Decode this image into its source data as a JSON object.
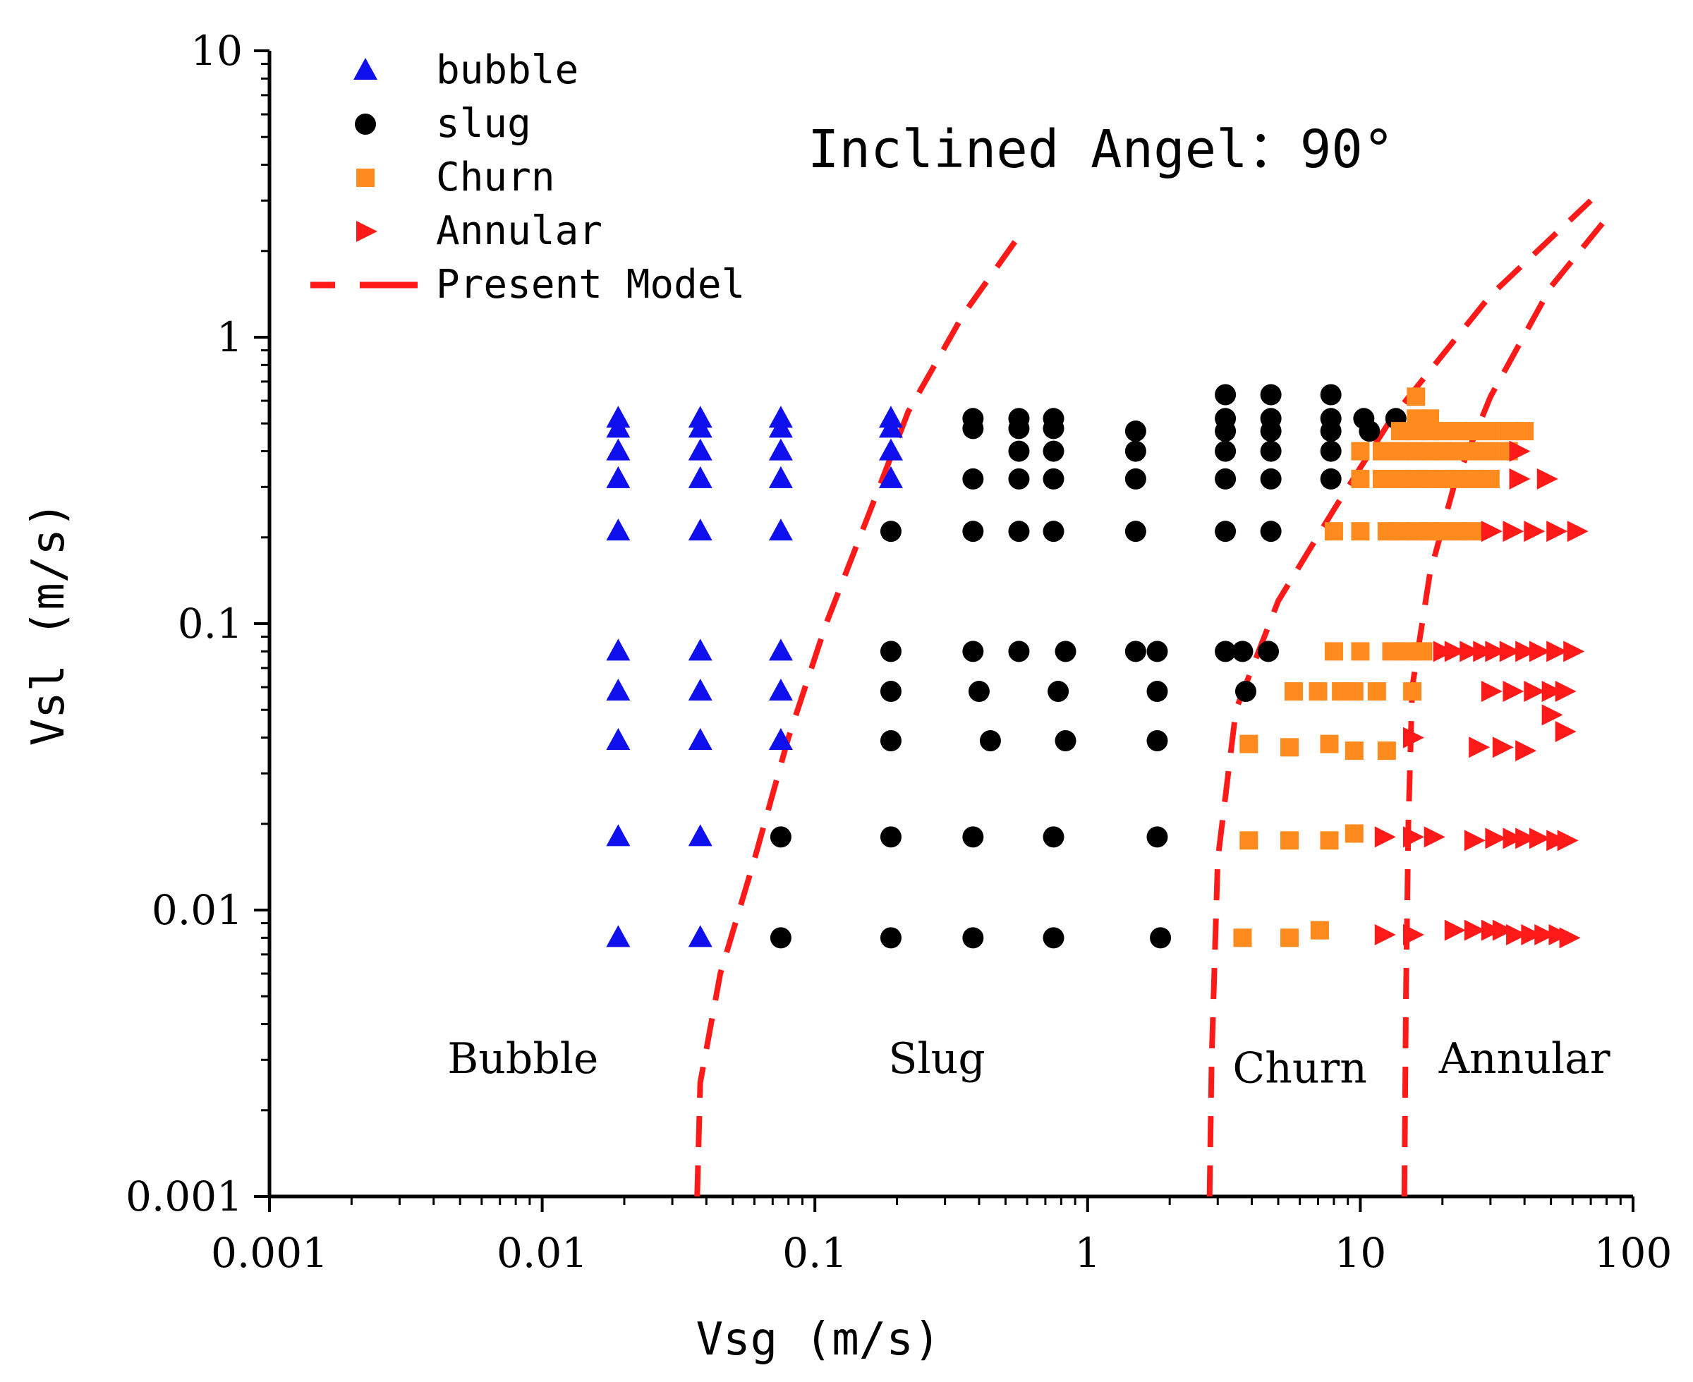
{
  "chart_data": {
    "type": "scatter",
    "title": "Inclined Angel：90°",
    "xlabel": "Vsg (m/s)",
    "ylabel": "Vsl (m/s)",
    "xscale": "log",
    "yscale": "log",
    "xlim": [
      0.001,
      100
    ],
    "ylim": [
      0.001,
      10
    ],
    "xticks": [
      {
        "value": 0.001,
        "label": "0.001"
      },
      {
        "value": 0.01,
        "label": "0.01"
      },
      {
        "value": 0.1,
        "label": "0.1"
      },
      {
        "value": 1,
        "label": "1"
      },
      {
        "value": 10,
        "label": "10"
      },
      {
        "value": 100,
        "label": "100"
      }
    ],
    "yticks": [
      {
        "value": 0.001,
        "label": "0.001"
      },
      {
        "value": 0.01,
        "label": "0.01"
      },
      {
        "value": 0.1,
        "label": "0.1"
      },
      {
        "value": 1,
        "label": "1"
      },
      {
        "value": 10,
        "label": "10"
      }
    ],
    "legend_position": "top-left",
    "colors": {
      "bubble": "#1010ee",
      "slug": "#000000",
      "churn": "#ff8a1e",
      "annular": "#ff1a1a",
      "model": "#ff1a1a"
    },
    "series": [
      {
        "name": "bubble",
        "marker": "triangle-up",
        "points": [
          [
            0.019,
            0.52
          ],
          [
            0.019,
            0.48
          ],
          [
            0.019,
            0.4
          ],
          [
            0.019,
            0.32
          ],
          [
            0.019,
            0.21
          ],
          [
            0.019,
            0.08
          ],
          [
            0.019,
            0.058
          ],
          [
            0.019,
            0.039
          ],
          [
            0.019,
            0.018
          ],
          [
            0.019,
            0.008
          ],
          [
            0.038,
            0.52
          ],
          [
            0.038,
            0.48
          ],
          [
            0.038,
            0.4
          ],
          [
            0.038,
            0.32
          ],
          [
            0.038,
            0.21
          ],
          [
            0.038,
            0.08
          ],
          [
            0.038,
            0.058
          ],
          [
            0.038,
            0.039
          ],
          [
            0.038,
            0.018
          ],
          [
            0.038,
            0.008
          ],
          [
            0.075,
            0.52
          ],
          [
            0.075,
            0.48
          ],
          [
            0.075,
            0.4
          ],
          [
            0.075,
            0.32
          ],
          [
            0.075,
            0.21
          ],
          [
            0.075,
            0.08
          ],
          [
            0.075,
            0.058
          ],
          [
            0.075,
            0.039
          ],
          [
            0.19,
            0.52
          ],
          [
            0.19,
            0.48
          ],
          [
            0.19,
            0.4
          ],
          [
            0.19,
            0.32
          ]
        ]
      },
      {
        "name": "slug",
        "marker": "circle",
        "points": [
          [
            0.075,
            0.018
          ],
          [
            0.075,
            0.008
          ],
          [
            0.19,
            0.21
          ],
          [
            0.19,
            0.08
          ],
          [
            0.19,
            0.058
          ],
          [
            0.19,
            0.039
          ],
          [
            0.19,
            0.018
          ],
          [
            0.19,
            0.008
          ],
          [
            0.38,
            0.52
          ],
          [
            0.38,
            0.48
          ],
          [
            0.38,
            0.32
          ],
          [
            0.38,
            0.21
          ],
          [
            0.38,
            0.08
          ],
          [
            0.4,
            0.058
          ],
          [
            0.44,
            0.039
          ],
          [
            0.38,
            0.018
          ],
          [
            0.38,
            0.008
          ],
          [
            0.56,
            0.52
          ],
          [
            0.56,
            0.48
          ],
          [
            0.56,
            0.4
          ],
          [
            0.56,
            0.32
          ],
          [
            0.56,
            0.21
          ],
          [
            0.56,
            0.08
          ],
          [
            0.75,
            0.52
          ],
          [
            0.75,
            0.48
          ],
          [
            0.75,
            0.4
          ],
          [
            0.75,
            0.32
          ],
          [
            0.75,
            0.21
          ],
          [
            0.83,
            0.08
          ],
          [
            0.78,
            0.058
          ],
          [
            0.83,
            0.039
          ],
          [
            0.75,
            0.018
          ],
          [
            0.75,
            0.008
          ],
          [
            1.5,
            0.47
          ],
          [
            1.5,
            0.4
          ],
          [
            1.5,
            0.32
          ],
          [
            1.5,
            0.21
          ],
          [
            1.5,
            0.08
          ],
          [
            1.8,
            0.08
          ],
          [
            1.8,
            0.058
          ],
          [
            1.8,
            0.039
          ],
          [
            1.8,
            0.018
          ],
          [
            1.85,
            0.008
          ],
          [
            3.2,
            0.63
          ],
          [
            3.2,
            0.52
          ],
          [
            3.2,
            0.47
          ],
          [
            3.2,
            0.4
          ],
          [
            3.2,
            0.32
          ],
          [
            3.2,
            0.21
          ],
          [
            3.2,
            0.08
          ],
          [
            3.7,
            0.08
          ],
          [
            4.6,
            0.08
          ],
          [
            3.8,
            0.058
          ],
          [
            4.7,
            0.63
          ],
          [
            4.7,
            0.52
          ],
          [
            4.7,
            0.47
          ],
          [
            4.7,
            0.4
          ],
          [
            4.7,
            0.32
          ],
          [
            4.7,
            0.21
          ],
          [
            7.8,
            0.63
          ],
          [
            7.8,
            0.52
          ],
          [
            7.8,
            0.47
          ],
          [
            7.8,
            0.4
          ],
          [
            7.8,
            0.32
          ],
          [
            10.3,
            0.52
          ],
          [
            10.8,
            0.47
          ],
          [
            13.5,
            0.52
          ]
        ]
      },
      {
        "name": "Churn",
        "marker": "square",
        "points": [
          [
            8.0,
            0.21
          ],
          [
            10.0,
            0.21
          ],
          [
            12.5,
            0.21
          ],
          [
            14.0,
            0.21
          ],
          [
            16.0,
            0.21
          ],
          [
            18.0,
            0.21
          ],
          [
            20.0,
            0.21
          ],
          [
            23.0,
            0.21
          ],
          [
            26.0,
            0.21
          ],
          [
            10.0,
            0.4
          ],
          [
            10.0,
            0.32
          ],
          [
            12.0,
            0.4
          ],
          [
            12.0,
            0.32
          ],
          [
            14.0,
            0.47
          ],
          [
            14.0,
            0.4
          ],
          [
            14.0,
            0.32
          ],
          [
            16.0,
            0.62
          ],
          [
            16.0,
            0.52
          ],
          [
            16.0,
            0.47
          ],
          [
            16.0,
            0.4
          ],
          [
            16.0,
            0.32
          ],
          [
            18.0,
            0.52
          ],
          [
            18.0,
            0.47
          ],
          [
            18.0,
            0.4
          ],
          [
            18.0,
            0.32
          ],
          [
            20.0,
            0.47
          ],
          [
            20.0,
            0.4
          ],
          [
            20.0,
            0.32
          ],
          [
            23.0,
            0.47
          ],
          [
            23.0,
            0.4
          ],
          [
            23.0,
            0.32
          ],
          [
            26.0,
            0.47
          ],
          [
            26.0,
            0.4
          ],
          [
            26.0,
            0.32
          ],
          [
            30.0,
            0.47
          ],
          [
            30.0,
            0.4
          ],
          [
            30.0,
            0.32
          ],
          [
            35.0,
            0.47
          ],
          [
            35.0,
            0.4
          ],
          [
            40.0,
            0.47
          ],
          [
            8.0,
            0.08
          ],
          [
            10.0,
            0.08
          ],
          [
            13.0,
            0.08
          ],
          [
            15.0,
            0.08
          ],
          [
            17.0,
            0.08
          ],
          [
            5.7,
            0.058
          ],
          [
            7.0,
            0.058
          ],
          [
            8.5,
            0.058
          ],
          [
            9.5,
            0.058
          ],
          [
            11.5,
            0.058
          ],
          [
            15.5,
            0.058
          ],
          [
            3.9,
            0.038
          ],
          [
            5.5,
            0.037
          ],
          [
            7.7,
            0.038
          ],
          [
            9.5,
            0.036
          ],
          [
            12.5,
            0.036
          ],
          [
            3.9,
            0.0175
          ],
          [
            5.5,
            0.0175
          ],
          [
            7.7,
            0.0175
          ],
          [
            9.5,
            0.0185
          ],
          [
            3.7,
            0.008
          ],
          [
            5.5,
            0.008
          ],
          [
            7.1,
            0.0085
          ]
        ]
      },
      {
        "name": "Annular",
        "marker": "triangle-right",
        "points": [
          [
            38.0,
            0.4
          ],
          [
            38.0,
            0.32
          ],
          [
            48.0,
            0.32
          ],
          [
            30.0,
            0.21
          ],
          [
            36.0,
            0.21
          ],
          [
            43.0,
            0.21
          ],
          [
            52.0,
            0.21
          ],
          [
            62.0,
            0.21
          ],
          [
            20.0,
            0.08
          ],
          [
            22.0,
            0.08
          ],
          [
            25.0,
            0.08
          ],
          [
            28.0,
            0.08
          ],
          [
            31.0,
            0.08
          ],
          [
            35.0,
            0.08
          ],
          [
            40.0,
            0.08
          ],
          [
            45.0,
            0.08
          ],
          [
            52.0,
            0.08
          ],
          [
            60.0,
            0.08
          ],
          [
            30.0,
            0.058
          ],
          [
            36.0,
            0.058
          ],
          [
            43.0,
            0.058
          ],
          [
            50.0,
            0.058
          ],
          [
            56.0,
            0.058
          ],
          [
            50.0,
            0.048
          ],
          [
            56.0,
            0.042
          ],
          [
            15.5,
            0.04
          ],
          [
            27.0,
            0.037
          ],
          [
            33.0,
            0.037
          ],
          [
            40.0,
            0.036
          ],
          [
            12.2,
            0.018
          ],
          [
            15.5,
            0.018
          ],
          [
            18.5,
            0.018
          ],
          [
            26.0,
            0.0175
          ],
          [
            31.0,
            0.0178
          ],
          [
            36.0,
            0.0178
          ],
          [
            40.0,
            0.0178
          ],
          [
            45.0,
            0.0178
          ],
          [
            52.0,
            0.0175
          ],
          [
            57.0,
            0.0175
          ],
          [
            12.2,
            0.0082
          ],
          [
            15.5,
            0.0082
          ],
          [
            22.0,
            0.0085
          ],
          [
            26.0,
            0.0085
          ],
          [
            30.0,
            0.0085
          ],
          [
            33.0,
            0.0085
          ],
          [
            37.0,
            0.0082
          ],
          [
            42.0,
            0.0082
          ],
          [
            47.0,
            0.0082
          ],
          [
            53.0,
            0.0082
          ],
          [
            58.0,
            0.008
          ]
        ]
      },
      {
        "name": "Present Model",
        "marker": "dashed-line",
        "lines": [
          [
            [
              0.037,
              0.001
            ],
            [
              0.038,
              0.0025
            ],
            [
              0.045,
              0.006
            ],
            [
              0.06,
              0.015
            ],
            [
              0.08,
              0.04
            ],
            [
              0.11,
              0.1
            ],
            [
              0.16,
              0.25
            ],
            [
              0.22,
              0.55
            ],
            [
              0.35,
              1.2
            ],
            [
              0.55,
              2.2
            ]
          ],
          [
            [
              2.8,
              0.001
            ],
            [
              2.85,
              0.003
            ],
            [
              3.0,
              0.015
            ],
            [
              3.5,
              0.05
            ],
            [
              5.0,
              0.12
            ],
            [
              8.0,
              0.25
            ],
            [
              13.0,
              0.52
            ],
            [
              30.0,
              1.4
            ],
            [
              70.0,
              3.0
            ]
          ],
          [
            [
              14.5,
              0.001
            ],
            [
              14.7,
              0.005
            ],
            [
              15.0,
              0.02
            ],
            [
              15.5,
              0.06
            ],
            [
              18.0,
              0.15
            ],
            [
              22.0,
              0.3
            ],
            [
              30.0,
              0.62
            ],
            [
              50.0,
              1.5
            ],
            [
              80.0,
              2.6
            ]
          ]
        ]
      }
    ],
    "legend": [
      {
        "label": "bubble",
        "marker": "triangle-up"
      },
      {
        "label": "slug",
        "marker": "circle"
      },
      {
        "label": "Churn",
        "marker": "square"
      },
      {
        "label": "Annular",
        "marker": "triangle-right"
      },
      {
        "label": "Present Model",
        "marker": "dashed-line"
      }
    ],
    "annotations": [
      {
        "text": "Bubble",
        "x": 0.0085,
        "y": 0.0027
      },
      {
        "text": "Slug",
        "x": 0.28,
        "y": 0.0027
      },
      {
        "text": "Churn",
        "x": 6.0,
        "y": 0.0025
      },
      {
        "text": "Annular",
        "x": 40.0,
        "y": 0.0027
      }
    ]
  }
}
